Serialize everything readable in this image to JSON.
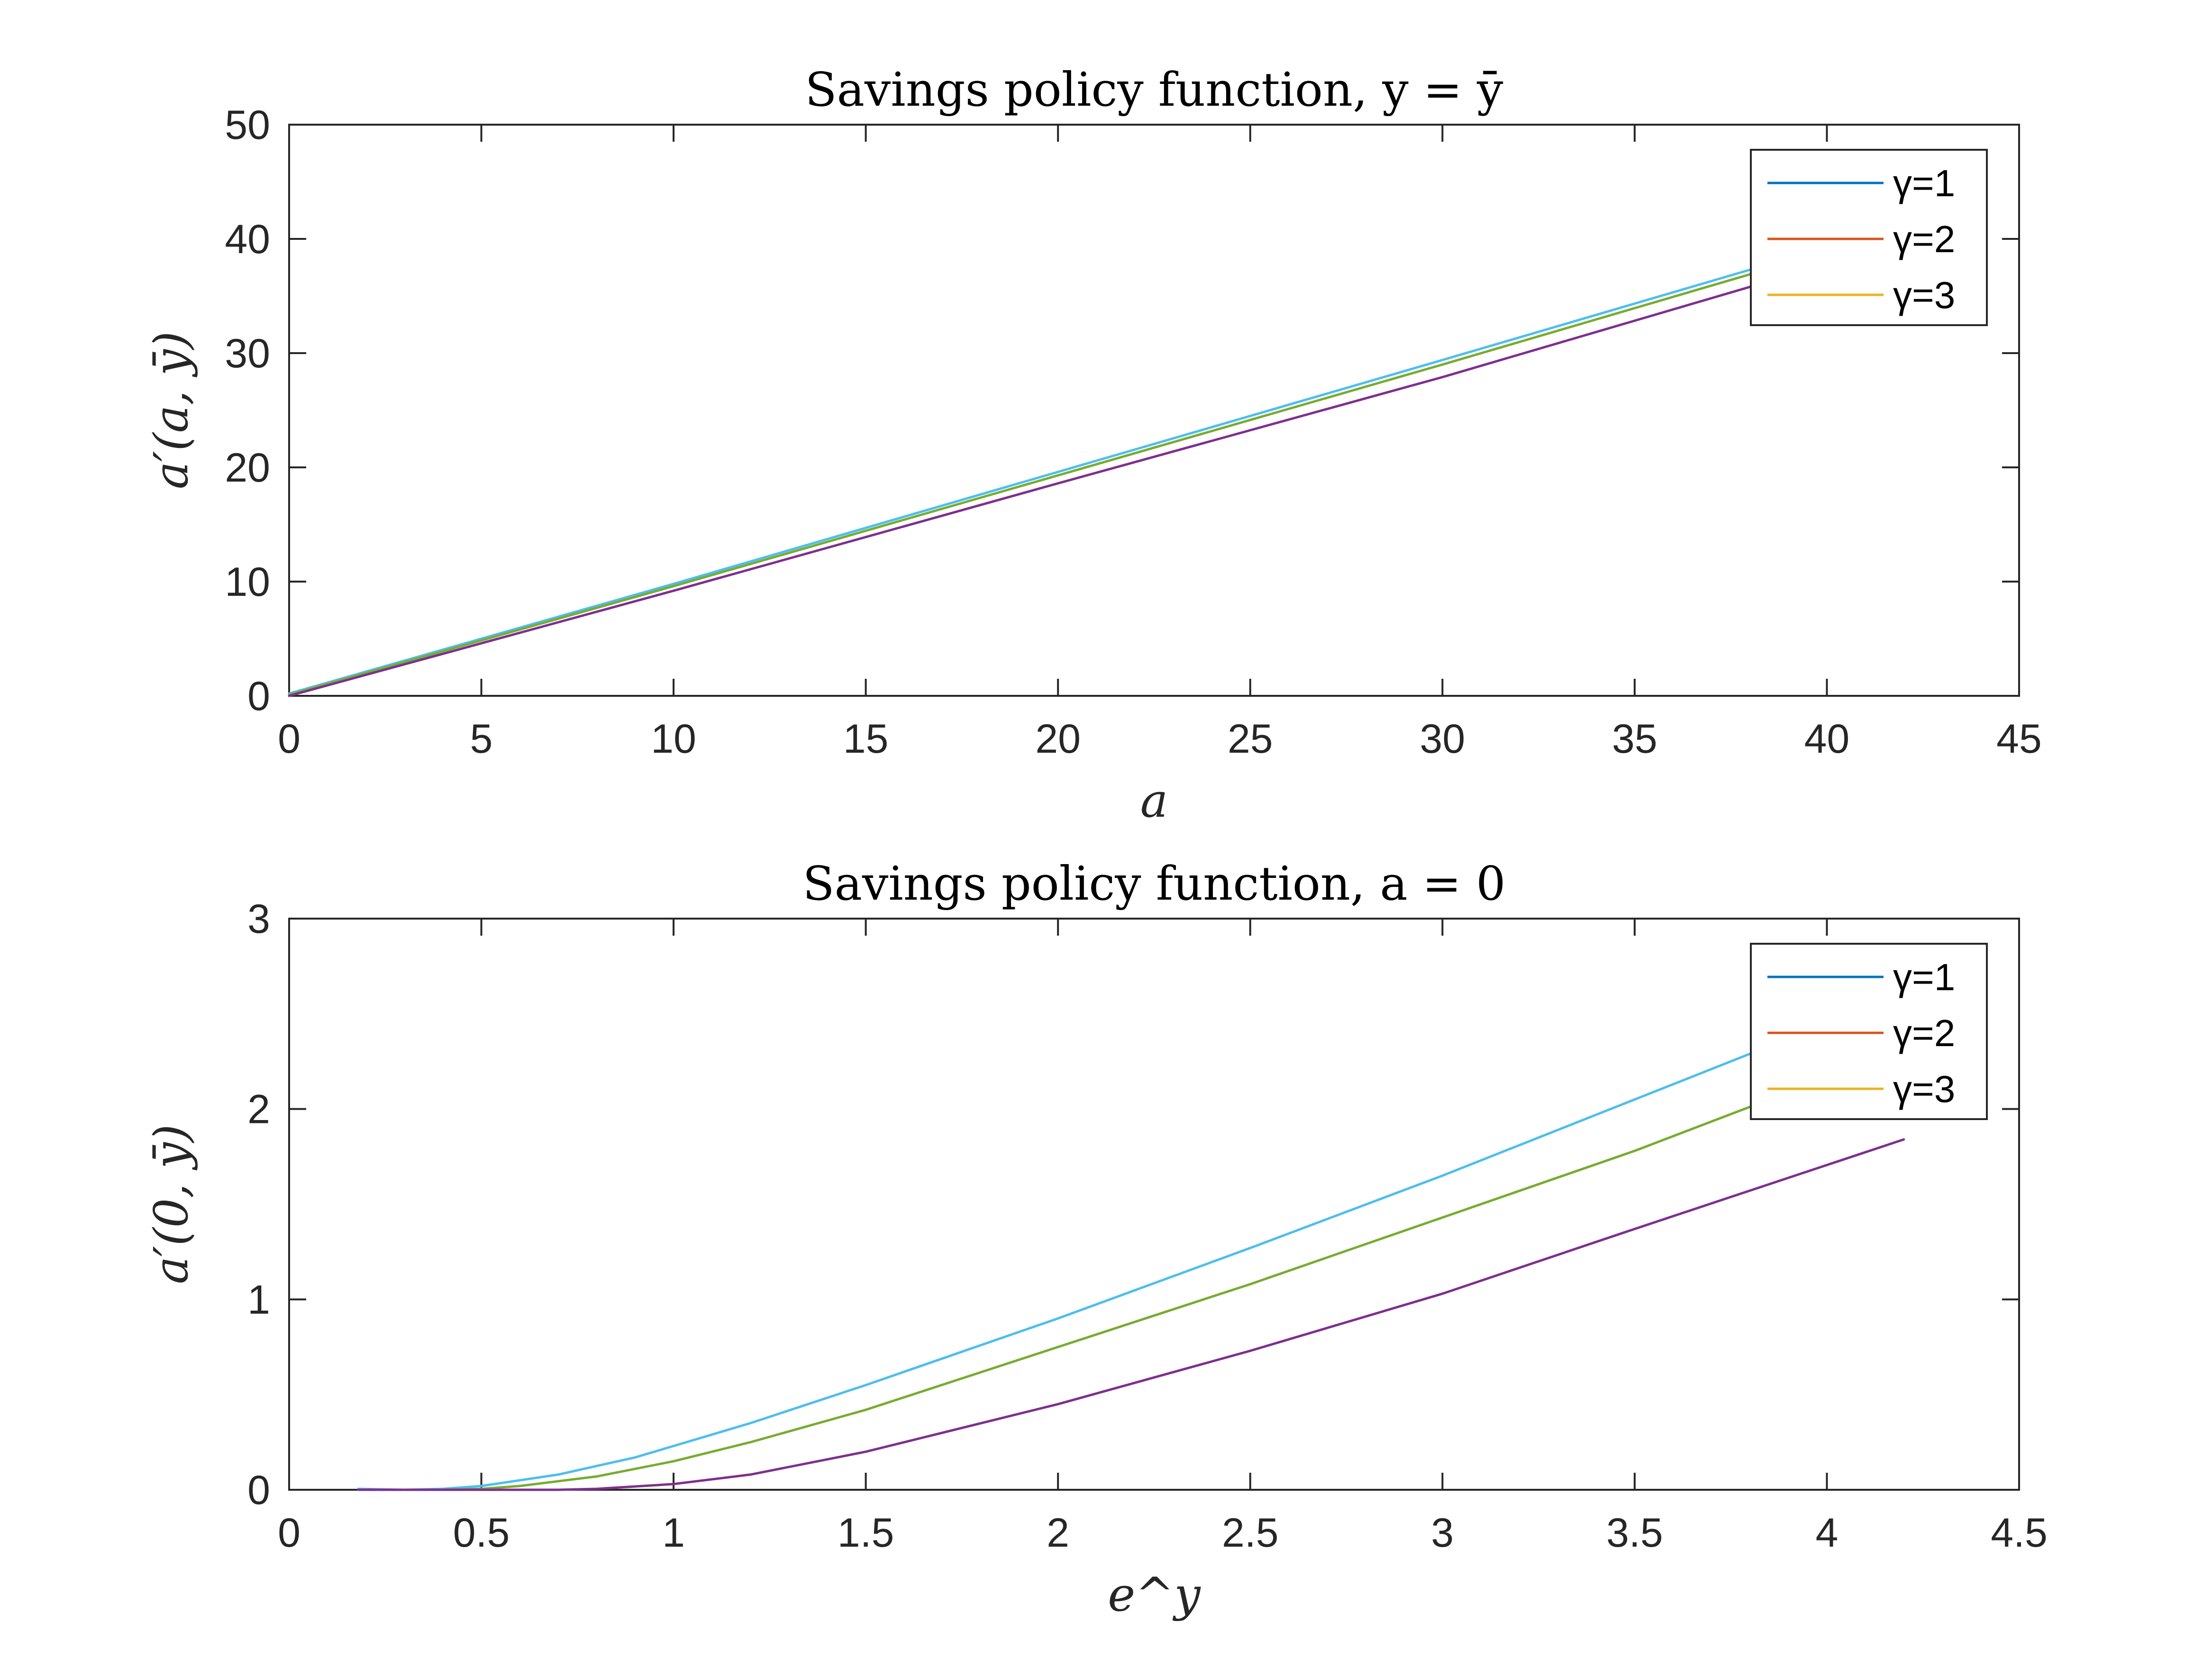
{
  "chart_data": [
    {
      "type": "line",
      "title": "Savings policy function, y = ȳ",
      "xlabel": "a",
      "ylabel": "a′(a, ȳ)",
      "xlim": [
        0,
        45
      ],
      "ylim": [
        0,
        50
      ],
      "xticks": [
        "0",
        "5",
        "10",
        "15",
        "20",
        "25",
        "30",
        "35",
        "40",
        "45"
      ],
      "yticks": [
        "0",
        "10",
        "20",
        "30",
        "40",
        "50"
      ],
      "grid": false,
      "legend": {
        "placement": "top-right",
        "entries": [
          {
            "label": "γ=1",
            "color": "#0072BD"
          },
          {
            "label": "γ=2",
            "color": "#D95319"
          },
          {
            "label": "γ=3",
            "color": "#EDB120"
          }
        ]
      },
      "series": [
        {
          "color": "#4DBEEE",
          "x": [
            0,
            10,
            20,
            30,
            38
          ],
          "y": [
            0.2,
            9.8,
            19.6,
            29.4,
            37.3
          ]
        },
        {
          "color": "#77AC30",
          "x": [
            0,
            10,
            20,
            30,
            38
          ],
          "y": [
            0.1,
            9.6,
            19.3,
            29.0,
            36.9
          ]
        },
        {
          "color": "#7E2F8E",
          "x": [
            0,
            10,
            20,
            30,
            38
          ],
          "y": [
            0.0,
            9.2,
            18.6,
            27.9,
            35.8
          ]
        }
      ]
    },
    {
      "type": "line",
      "title": "Savings policy function, a = 0",
      "xlabel": "e^y",
      "ylabel": "a′(0, ȳ)",
      "xlim": [
        0,
        4.5
      ],
      "ylim": [
        0,
        3
      ],
      "xticks": [
        "0",
        "0.5",
        "1",
        "1.5",
        "2",
        "2.5",
        "3",
        "3.5",
        "4",
        "4.5"
      ],
      "yticks": [
        "0",
        "1",
        "2",
        "3"
      ],
      "grid": false,
      "legend": {
        "placement": "top-right",
        "entries": [
          {
            "label": "γ=1",
            "color": "#0072BD"
          },
          {
            "label": "γ=2",
            "color": "#D95319"
          },
          {
            "label": "γ=3",
            "color": "#EDB120"
          }
        ]
      },
      "series": [
        {
          "color": "#4DBEEE",
          "x": [
            0.18,
            0.3,
            0.4,
            0.5,
            0.7,
            0.9,
            1.0,
            1.2,
            1.5,
            2.0,
            2.5,
            3.0,
            3.5,
            3.85
          ],
          "y": [
            0.005,
            0.0,
            0.005,
            0.02,
            0.08,
            0.17,
            0.23,
            0.35,
            0.55,
            0.9,
            1.27,
            1.65,
            2.05,
            2.33
          ]
        },
        {
          "color": "#77AC30",
          "x": [
            0.18,
            0.4,
            0.5,
            0.6,
            0.8,
            1.0,
            1.2,
            1.5,
            2.0,
            2.5,
            3.0,
            3.5,
            3.85
          ],
          "y": [
            0.0,
            0.0,
            0.005,
            0.02,
            0.07,
            0.15,
            0.25,
            0.42,
            0.75,
            1.08,
            1.43,
            1.78,
            2.05
          ]
        },
        {
          "color": "#7E2F8E",
          "x": [
            0.18,
            0.5,
            0.7,
            0.8,
            1.0,
            1.2,
            1.5,
            2.0,
            2.5,
            3.0,
            3.5,
            4.2
          ],
          "y": [
            0.0,
            0.0,
            0.0,
            0.005,
            0.03,
            0.08,
            0.2,
            0.45,
            0.73,
            1.03,
            1.37,
            1.84
          ]
        }
      ]
    }
  ]
}
